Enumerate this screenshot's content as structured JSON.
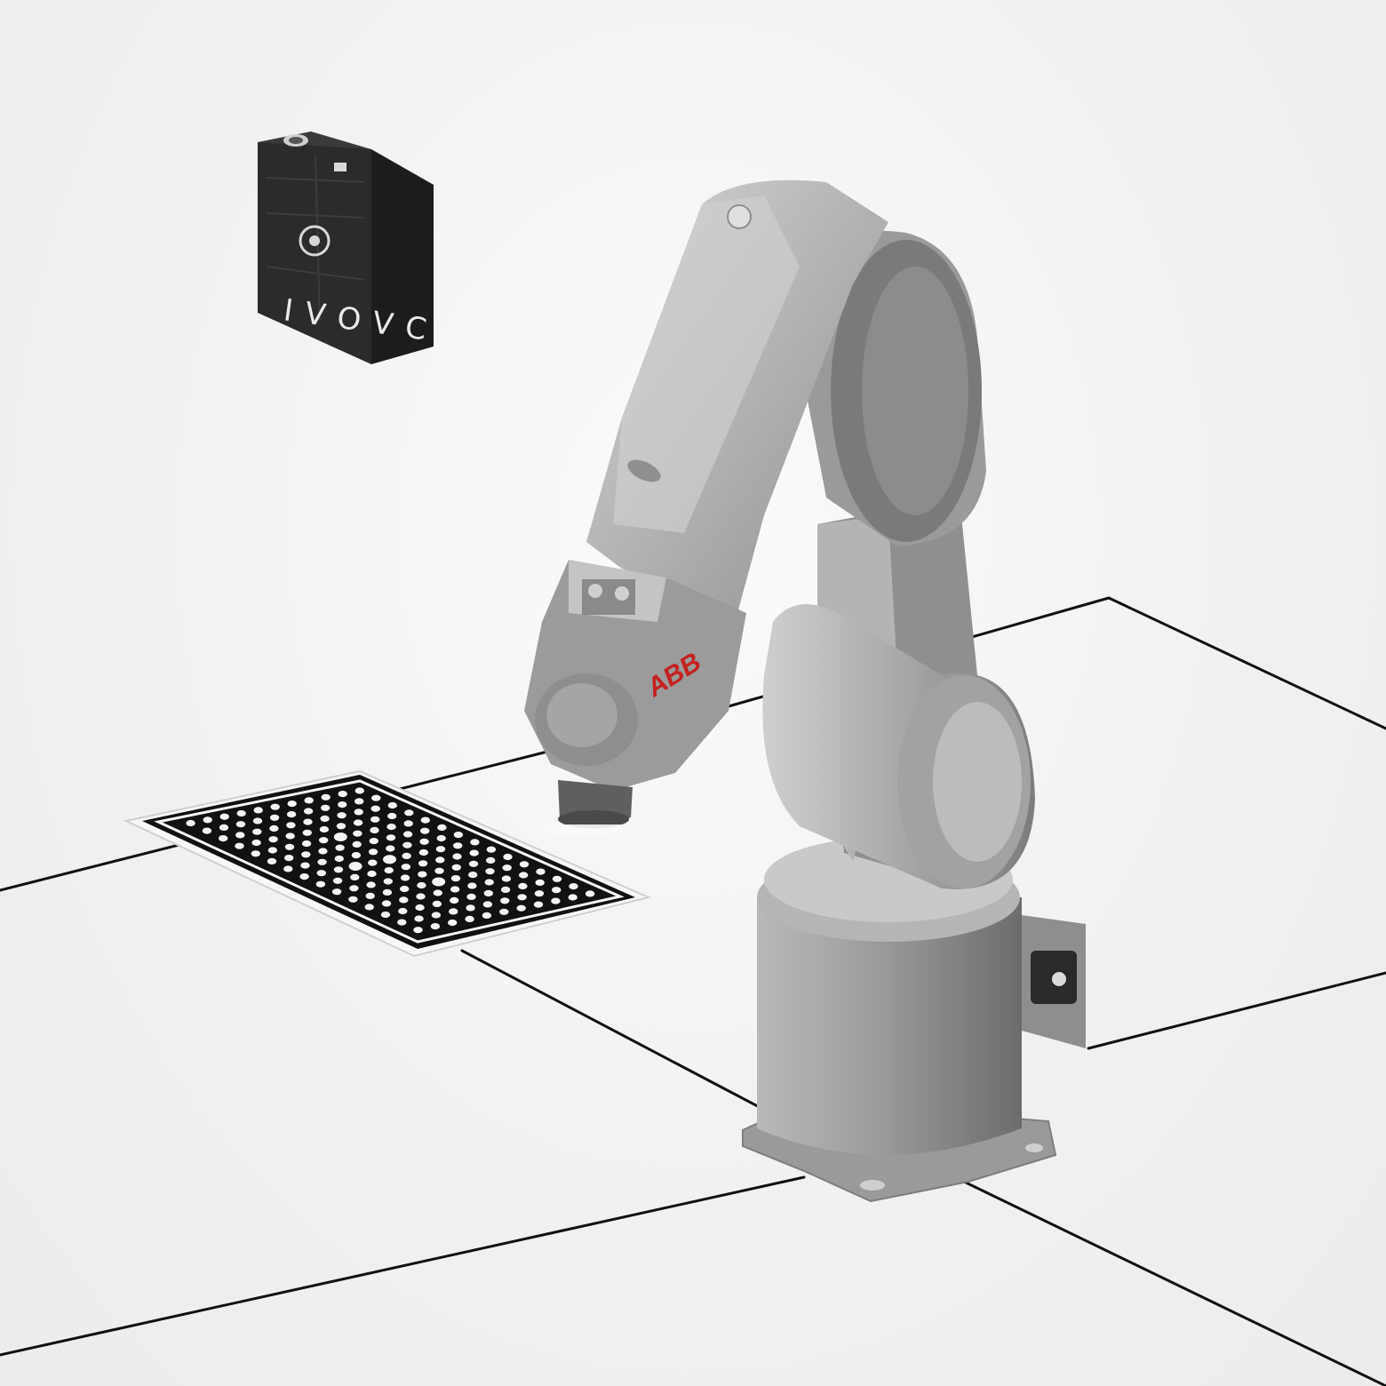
{
  "scene": {
    "camera": {
      "brand_text": "IVOVC",
      "icon": "camera-box-icon"
    },
    "robot": {
      "brand_text": "ABB",
      "brand_color": "#c62020",
      "icon": "industrial-robot-arm-icon"
    },
    "calibration_board": {
      "icon": "dot-grid-calibration-board-icon"
    },
    "colors": {
      "background": "#f1f1f1",
      "robot_body": "#a8a8a8",
      "robot_shadow": "#6f6f6f",
      "camera_body": "#2b2b2b",
      "outline": "#111111"
    }
  }
}
